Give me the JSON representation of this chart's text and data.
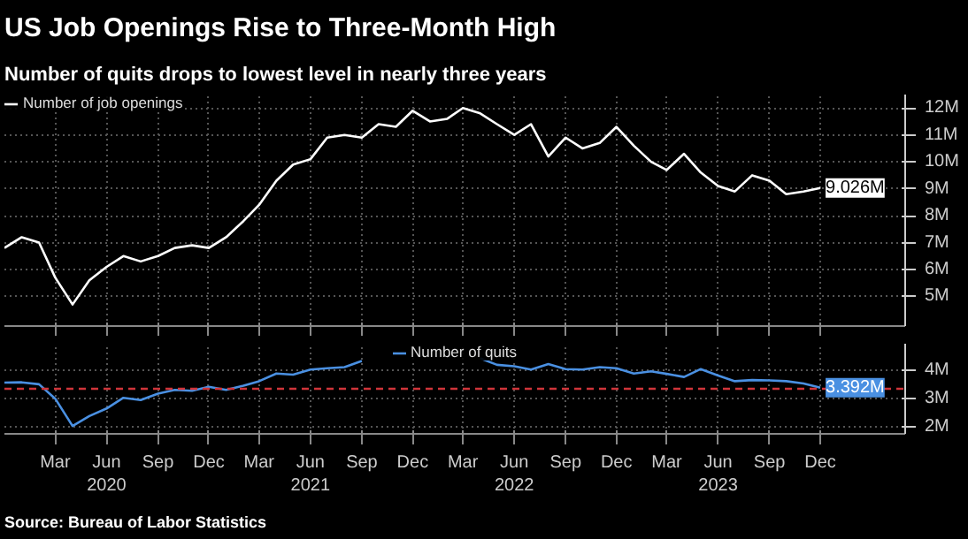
{
  "chart_data": [
    {
      "type": "line",
      "title": "US Job Openings Rise to Three-Month High",
      "subtitle": "Number of quits drops to lowest level in nearly three years",
      "x": [
        "2019-12",
        "2020-01",
        "2020-02",
        "2020-03",
        "2020-04",
        "2020-05",
        "2020-06",
        "2020-07",
        "2020-08",
        "2020-09",
        "2020-10",
        "2020-11",
        "2020-12",
        "2021-01",
        "2021-02",
        "2021-03",
        "2021-04",
        "2021-05",
        "2021-06",
        "2021-07",
        "2021-08",
        "2021-09",
        "2021-10",
        "2021-11",
        "2021-12",
        "2022-01",
        "2022-02",
        "2022-03",
        "2022-04",
        "2022-05",
        "2022-06",
        "2022-07",
        "2022-08",
        "2022-09",
        "2022-10",
        "2022-11",
        "2022-12",
        "2023-01",
        "2023-02",
        "2023-03",
        "2023-04",
        "2023-05",
        "2023-06",
        "2023-07",
        "2023-08",
        "2023-09",
        "2023-10",
        "2023-11",
        "2023-12"
      ],
      "series": [
        {
          "name": "Number of job openings",
          "color": "#ffffff",
          "values": [
            6.8,
            7.2,
            7.0,
            5.7,
            4.7,
            5.6,
            6.1,
            6.5,
            6.3,
            6.5,
            6.8,
            6.9,
            6.8,
            7.2,
            7.8,
            8.4,
            9.3,
            9.9,
            10.1,
            10.9,
            11.0,
            10.9,
            11.4,
            11.3,
            11.9,
            11.5,
            11.6,
            12.0,
            11.8,
            11.4,
            11.0,
            11.4,
            10.2,
            10.9,
            10.5,
            10.7,
            11.3,
            10.6,
            10.0,
            9.7,
            10.3,
            9.6,
            9.1,
            8.9,
            9.5,
            9.3,
            8.8,
            8.9,
            9.026
          ],
          "value_labels": [
            null,
            null,
            null,
            null,
            null,
            null,
            null,
            null,
            null,
            null,
            null,
            null,
            null,
            null,
            null,
            null,
            null,
            null,
            null,
            null,
            null,
            null,
            null,
            null,
            null,
            null,
            null,
            null,
            null,
            null,
            null,
            null,
            null,
            null,
            null,
            null,
            null,
            null,
            null,
            null,
            null,
            null,
            null,
            null,
            null,
            null,
            null,
            null,
            "9.026M"
          ]
        }
      ],
      "xlim": [
        "2019-12",
        "2024-05"
      ],
      "ylim": [
        3.9,
        12.5
      ],
      "yticks": [
        {
          "value": 5,
          "label": "5M"
        },
        {
          "value": 6,
          "label": "6M"
        },
        {
          "value": 7,
          "label": "7M"
        },
        {
          "value": 8,
          "label": "8M"
        },
        {
          "value": 9,
          "label": "9M"
        },
        {
          "value": 10,
          "label": "10M"
        },
        {
          "value": 11,
          "label": "11M"
        },
        {
          "value": 12,
          "label": "12M"
        }
      ],
      "xticks": [
        {
          "value": "2020-03",
          "label": null
        },
        {
          "value": "2020-06",
          "label": null
        },
        {
          "value": "2020-09",
          "label": null
        },
        {
          "value": "2020-12",
          "label": null
        },
        {
          "value": "2021-03",
          "label": null
        },
        {
          "value": "2021-06",
          "label": null
        },
        {
          "value": "2021-09",
          "label": null
        },
        {
          "value": "2021-12",
          "label": null
        },
        {
          "value": "2022-03",
          "label": null
        },
        {
          "value": "2022-06",
          "label": null
        },
        {
          "value": "2022-09",
          "label": null
        },
        {
          "value": "2022-12",
          "label": null
        },
        {
          "value": "2023-03",
          "label": null
        },
        {
          "value": "2023-06",
          "label": null
        },
        {
          "value": "2023-09",
          "label": null
        },
        {
          "value": "2023-12",
          "label": null
        }
      ],
      "tick_labels": "y",
      "grid": true,
      "legend": "top left",
      "line_style": "solid"
    },
    {
      "type": "line",
      "annotations": [
        "Source: Bureau of Labor Statistics"
      ],
      "x": [
        "2019-12",
        "2020-01",
        "2020-02",
        "2020-03",
        "2020-04",
        "2020-05",
        "2020-06",
        "2020-07",
        "2020-08",
        "2020-09",
        "2020-10",
        "2020-11",
        "2020-12",
        "2021-01",
        "2021-02",
        "2021-03",
        "2021-04",
        "2021-05",
        "2021-06",
        "2021-07",
        "2021-08",
        "2021-09",
        "2021-10",
        "2021-11",
        "2021-12",
        "2022-01",
        "2022-02",
        "2022-03",
        "2022-04",
        "2022-05",
        "2022-06",
        "2022-07",
        "2022-08",
        "2022-09",
        "2022-10",
        "2022-11",
        "2022-12",
        "2023-01",
        "2023-02",
        "2023-03",
        "2023-04",
        "2023-05",
        "2023-06",
        "2023-07",
        "2023-08",
        "2023-09",
        "2023-10",
        "2023-11",
        "2023-12"
      ],
      "series": [
        {
          "name": "Number of quits",
          "color": "#4a90e2",
          "values": [
            3.57,
            3.58,
            3.51,
            3.0,
            2.03,
            2.38,
            2.65,
            3.03,
            2.95,
            3.18,
            3.31,
            3.28,
            3.42,
            3.31,
            3.46,
            3.62,
            3.89,
            3.85,
            4.03,
            4.08,
            4.12,
            4.34,
            null,
            null,
            null,
            null,
            null,
            null,
            4.43,
            4.2,
            4.15,
            4.03,
            4.23,
            4.05,
            4.03,
            4.12,
            4.08,
            3.89,
            3.97,
            3.88,
            3.77,
            4.05,
            3.82,
            3.62,
            3.66,
            3.65,
            3.62,
            3.54,
            3.392
          ],
          "value_labels": [
            null,
            null,
            null,
            null,
            null,
            null,
            null,
            null,
            null,
            null,
            null,
            null,
            null,
            null,
            null,
            null,
            null,
            null,
            null,
            null,
            null,
            null,
            null,
            null,
            null,
            null,
            null,
            null,
            null,
            null,
            null,
            null,
            null,
            null,
            null,
            null,
            null,
            null,
            null,
            null,
            null,
            null,
            null,
            null,
            null,
            null,
            null,
            null,
            "3.392M"
          ]
        }
      ],
      "ref_lines": [
        {
          "axis": "y",
          "value": 3.35,
          "label": null,
          "color": "#d0343a",
          "line_style": "dashed"
        }
      ],
      "xlim": [
        "2019-12",
        "2024-05"
      ],
      "ylim": [
        1.75,
        4.95
      ],
      "yticks": [
        {
          "value": 2,
          "label": "2M"
        },
        {
          "value": 3,
          "label": "3M"
        },
        {
          "value": 4,
          "label": "4M"
        }
      ],
      "xticks": [
        {
          "value": "2020-03",
          "label": "Mar"
        },
        {
          "value": "2020-06",
          "label": "Jun\n2020"
        },
        {
          "value": "2020-09",
          "label": "Sep"
        },
        {
          "value": "2020-12",
          "label": "Dec"
        },
        {
          "value": "2021-03",
          "label": "Mar"
        },
        {
          "value": "2021-06",
          "label": "Jun\n2021"
        },
        {
          "value": "2021-09",
          "label": "Sep"
        },
        {
          "value": "2021-12",
          "label": "Dec"
        },
        {
          "value": "2022-03",
          "label": "Mar"
        },
        {
          "value": "2022-06",
          "label": "Jun\n2022"
        },
        {
          "value": "2022-09",
          "label": "Sep"
        },
        {
          "value": "2022-12",
          "label": "Dec"
        },
        {
          "value": "2023-03",
          "label": "Mar"
        },
        {
          "value": "2023-06",
          "label": "Jun\n2023"
        },
        {
          "value": "2023-09",
          "label": "Sep"
        },
        {
          "value": "2023-12",
          "label": "Dec"
        }
      ],
      "grid": true,
      "legend": "top",
      "line_style": "solid"
    }
  ]
}
